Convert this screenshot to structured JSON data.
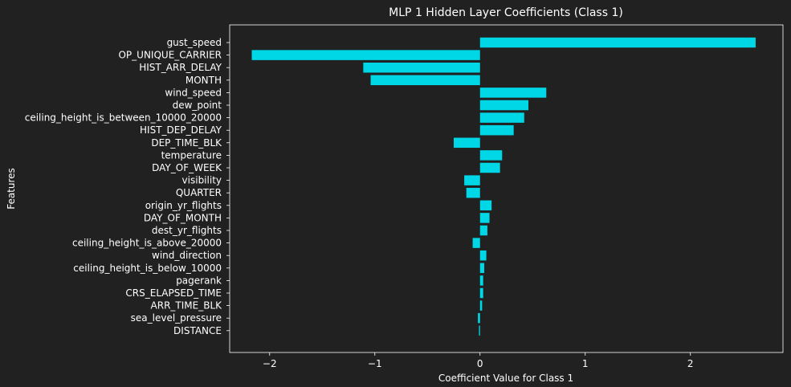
{
  "chart_data": {
    "type": "bar",
    "orientation": "horizontal",
    "title": "MLP 1 Hidden Layer Coefficients (Class 1)",
    "xlabel": "Coefficient Value for Class 1",
    "ylabel": "Features",
    "xlim": [
      -2.38,
      2.88
    ],
    "xticks": [
      -2,
      -1,
      0,
      1,
      2
    ],
    "xtick_labels": [
      "−2",
      "−1",
      "0",
      "1",
      "2"
    ],
    "bar_color": "#00d7e6",
    "background": "#212121",
    "text_color": "#ffffff",
    "grid": false,
    "categories": [
      "gust_speed",
      "OP_UNIQUE_CARRIER",
      "HIST_ARR_DELAY",
      "MONTH",
      "wind_speed",
      "dew_point",
      "ceiling_height_is_between_10000_20000",
      "HIST_DEP_DELAY",
      "DEP_TIME_BLK",
      "temperature",
      "DAY_OF_WEEK",
      "visibility",
      "QUARTER",
      "origin_yr_flights",
      "DAY_OF_MONTH",
      "dest_yr_flights",
      "ceiling_height_is_above_20000",
      "wind_direction",
      "ceiling_height_is_below_10000",
      "pagerank",
      "CRS_ELAPSED_TIME",
      "ARR_TIME_BLK",
      "sea_level_pressure",
      "DISTANCE"
    ],
    "values": [
      2.62,
      -2.17,
      -1.11,
      -1.04,
      0.63,
      0.46,
      0.42,
      0.32,
      -0.25,
      0.21,
      0.19,
      -0.15,
      -0.13,
      0.11,
      0.09,
      0.07,
      -0.07,
      0.06,
      0.04,
      0.03,
      0.03,
      0.02,
      -0.02,
      -0.01
    ]
  }
}
